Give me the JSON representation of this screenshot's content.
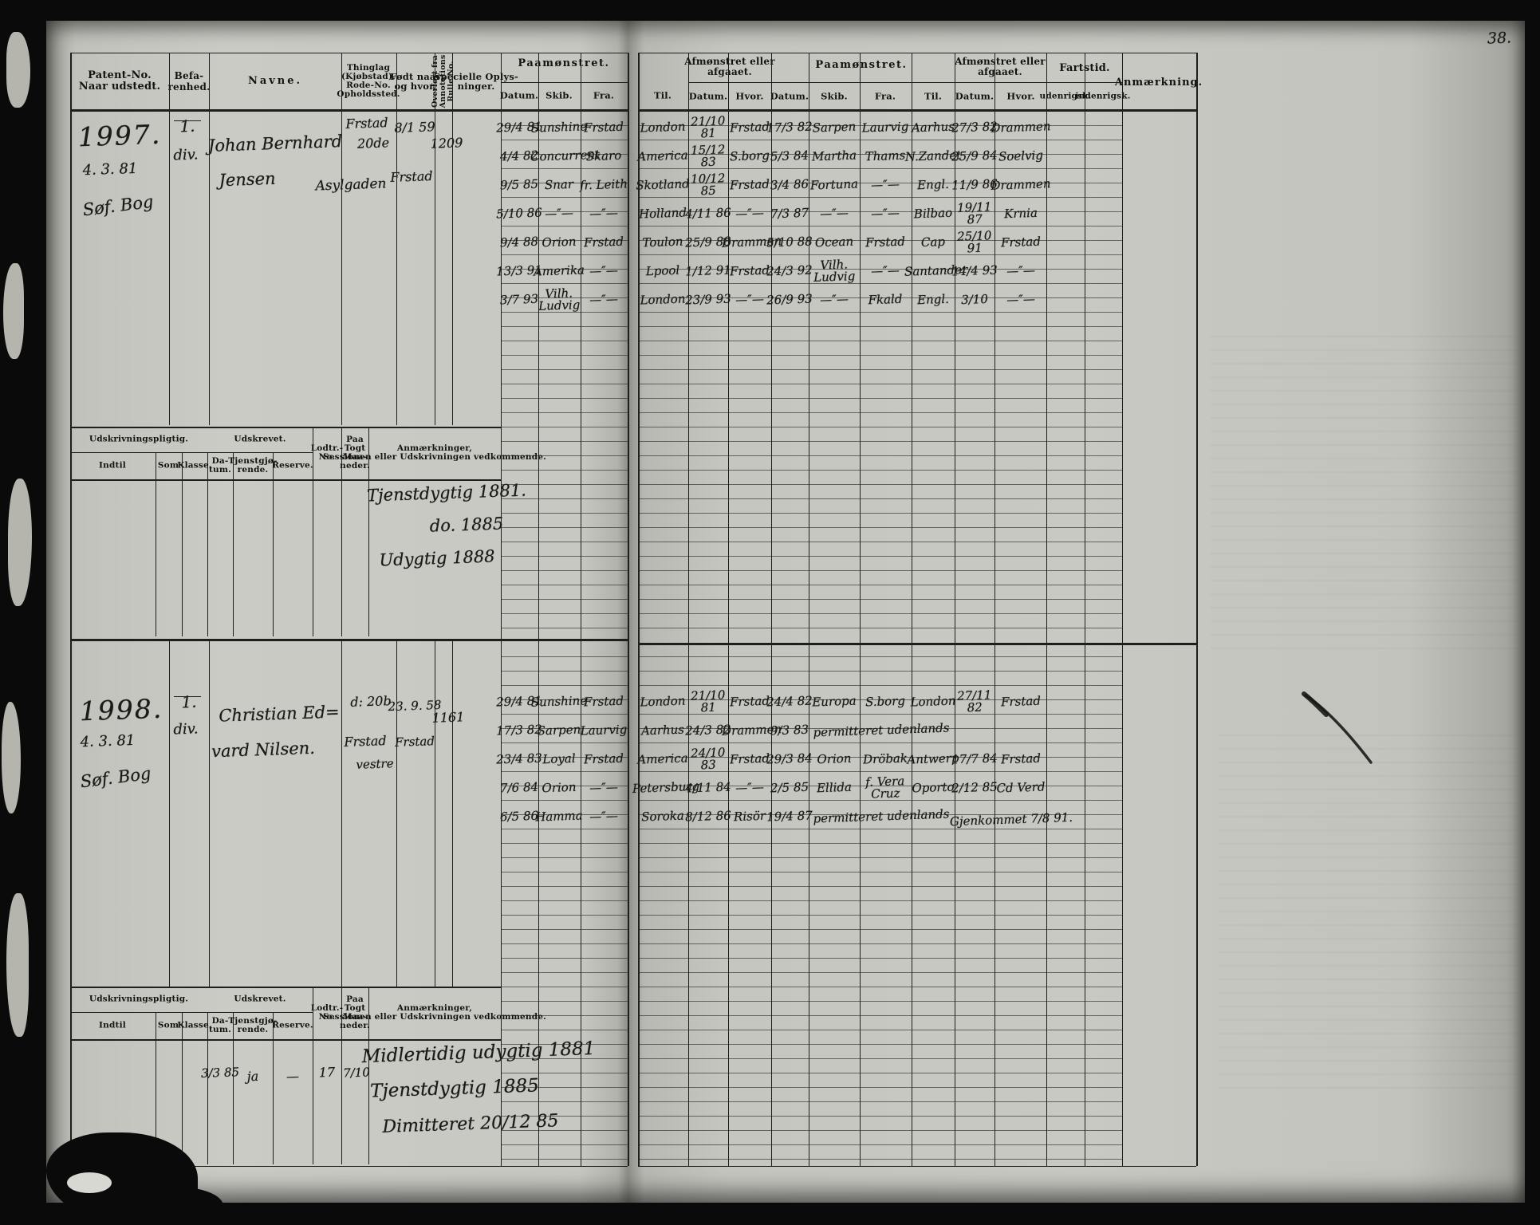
{
  "page_number": "38.",
  "headers": {
    "left": {
      "patent": "Patent-No.\nNaar udstedt.",
      "befarenhed": "Befa-\nrenhed.",
      "navne": "Navne.",
      "thinglag": "Thinglag\n(Kjøbstad).\nRode-No.\nOpholdssted.",
      "fodt": "Født naar\nog hvor.",
      "overfort": "Overført fra\nAnnotations\nRulle No.",
      "specielle": "Specielle Oplys-\nninger.",
      "paamonstret": "Paamønstret.",
      "datum": "Datum.",
      "skib": "Skib.",
      "fra": "Fra."
    },
    "right": {
      "til": "Til.",
      "afmonstret": "Afmønstret eller\nafgaaet.",
      "datum": "Datum.",
      "hvor": "Hvor.",
      "paamonstret": "Paamønstret.",
      "skib": "Skib.",
      "fra": "Fra.",
      "til2": "Til.",
      "afmonstret2": "Afmønstret eller\nafgaaet.",
      "datum2": "Datum.",
      "hvor2": "Hvor.",
      "fartstid": "Fartstid.",
      "udenrigsk": "udenrigsk.",
      "indenrigsk": "indenrigsk.",
      "anmaerkning": "Anmærkning."
    },
    "sub": {
      "udskrivningspligtig": "Udskrivningspligtig.",
      "indtil": "Indtil",
      "som": "Som",
      "klasse": "Klasse.",
      "udskrevet": "Udskrevet.",
      "datum": "Da-\ntum.",
      "tjenstgjorende": "Tjenstgjø-\nrende.",
      "reserve": "Reserve.",
      "lodtr": "Lodtr.-\nNo.",
      "paatogt": "Paa\nTogt\nMaa-\nneder.",
      "anm": "Anmærkninger,\nSessionen eller Udskrivningen vedkommende."
    }
  },
  "entries": [
    {
      "patent_no": "1997.",
      "patent_date": "4. 3. 81",
      "patent_note": "Søf. Bog",
      "befarenhed_1": "1.",
      "befarenhed_2": "div.",
      "name_1": "Johan Bernhard",
      "name_2": "Jensen",
      "thinglag_1": "Frstad",
      "thinglag_2": "20de",
      "thinglag_3": "Asylgaden",
      "born_1": "8/1 59",
      "born_2": "Frstad",
      "overfort": "1209",
      "rows": [
        {
          "pd": "29/4 81",
          "ps": "Sunshine",
          "pf": "Frstad",
          "til": "London",
          "ad": "21/10 81",
          "ah": "Frstad",
          "d2": "17/3 82",
          "s2": "Sarpen",
          "f2": "Laurvig",
          "t2": "Aarhus",
          "ad2": "27/3 82",
          "ah2": "Drammen"
        },
        {
          "pd": "4/4 82",
          "ps": "Concurrent",
          "pf": "Skaro",
          "til": "America",
          "ad": "15/12 83",
          "ah": "S.borg",
          "d2": "5/3 84",
          "s2": "Martha",
          "f2": "Thams",
          "t2": "N.Zandet",
          "ad2": "25/9 84",
          "ah2": "Soelvig"
        },
        {
          "pd": "9/5 85",
          "ps": "Snar",
          "pf": "fr. Leith",
          "til": "Skotland",
          "ad": "10/12 85",
          "ah": "Frstad",
          "d2": "3/4 86",
          "s2": "Fortuna",
          "f2": "—″—",
          "t2": "Engl.",
          "ad2": "11/9 86",
          "ah2": "Drammen"
        },
        {
          "pd": "5/10 86",
          "ps": "—″—",
          "pf": "—″—",
          "til": "Holland",
          "ad": "4/11 86",
          "ah": "—″—",
          "d2": "7/3 87",
          "s2": "—″—",
          "f2": "—″—",
          "t2": "Bilbao",
          "ad2": "19/11 87",
          "ah2": "Krnia"
        },
        {
          "pd": "9/4 88",
          "ps": "Orion",
          "pf": "Frstad",
          "til": "Toulon",
          "ad": "25/9 88",
          "ah": "Drammen",
          "d2": "5/10 88",
          "s2": "Ocean",
          "f2": "Frstad",
          "t2": "Cap",
          "ad2": "25/10 91",
          "ah2": "Frstad"
        },
        {
          "pd": "13/3 91",
          "ps": "Amerika",
          "pf": "—″—",
          "til": "Lpool",
          "ad": "1/12 91",
          "ah": "Frstad",
          "d2": "24/3 92",
          "s2": "Vilh.\nLudvig",
          "f2": "—″—",
          "t2": "Santander",
          "ad2": "14/4 93",
          "ah2": "—″—"
        },
        {
          "pd": "3/7 93",
          "ps": "Vilh.\nLudvig",
          "pf": "—″—",
          "til": "London",
          "ad": "23/9 93",
          "ah": "—″—",
          "d2": "26/9 93",
          "s2": "—″—",
          "f2": "Fkald",
          "t2": "Engl.",
          "ad2": "3/10",
          "ah2": "—″—"
        }
      ],
      "sub_values": {
        "datum": "",
        "tjenstgjorende": "",
        "reserve": "",
        "lodtr": "",
        "paatogt": ""
      },
      "annotations": [
        "Tjenstdygtig 1881.",
        "do.   1885",
        "Udygtig 1888"
      ]
    },
    {
      "patent_no": "1998.",
      "patent_date": "4. 3. 81",
      "patent_note": "Søf. Bog",
      "befarenhed_1": "1.",
      "befarenhed_2": "div.",
      "name_1": "Christian Ed=",
      "name_2": "vard Nilsen.",
      "thinglag_1": "d: 20b",
      "thinglag_2": "Frstad",
      "thinglag_3": "vestre",
      "born_1": "23. 9. 58",
      "born_2": "Frstad",
      "overfort": "1161",
      "rows": [
        {
          "pd": "29/4 81",
          "ps": "Sunshine",
          "pf": "Frstad",
          "til": "London",
          "ad": "21/10 81",
          "ah": "Frstad",
          "d2": "24/4 82",
          "s2": "Europa",
          "f2": "S.borg",
          "t2": "London",
          "ad2": "27/11 82",
          "ah2": "Frstad"
        },
        {
          "pd": "17/3 82",
          "ps": "Sarpen",
          "pf": "Laurvig",
          "til": "Aarhus",
          "ad": "24/3 82",
          "ah": "Drammen",
          "d2": "9/3 83",
          "span": "permitteret udenlands"
        },
        {
          "pd": "23/4 83",
          "ps": "Loyal",
          "pf": "Frstad",
          "til": "America",
          "ad": "24/10 83",
          "ah": "Frstad",
          "d2": "29/3 84",
          "s2": "Orion",
          "f2": "Dröbak",
          "t2": "Antwerp",
          "ad2": "17/7 84",
          "ah2": "Frstad"
        },
        {
          "pd": "7/6 84",
          "ps": "Orion",
          "pf": "—″—",
          "til": "Petersburg",
          "ad": "4/11 84",
          "ah": "—″—",
          "d2": "2/5 85",
          "s2": "Ellida",
          "f2": "f. Vera Cruz",
          "t2": "Oporto",
          "ad2": "2/12 85",
          "ah2": "Cd Verd"
        },
        {
          "pd": "6/5 86",
          "ps": "Hamma",
          "pf": "—″—",
          "til": "Soroka",
          "ad": "8/12 86",
          "ah": "Risör",
          "d2": "19/4 87",
          "span": "permitteret udenlands",
          "anm": "Gjenkommet 7/8 91."
        }
      ],
      "sub_values": {
        "datum": "3/3 85",
        "tjenstgjorende": "ja",
        "reserve": "—",
        "lodtr": "17",
        "paatogt": "7/10"
      },
      "annotations": [
        "Midlertidig udygtig 1881",
        "Tjenstdygtig 1885",
        "Dimitteret 20/12 85"
      ]
    }
  ]
}
